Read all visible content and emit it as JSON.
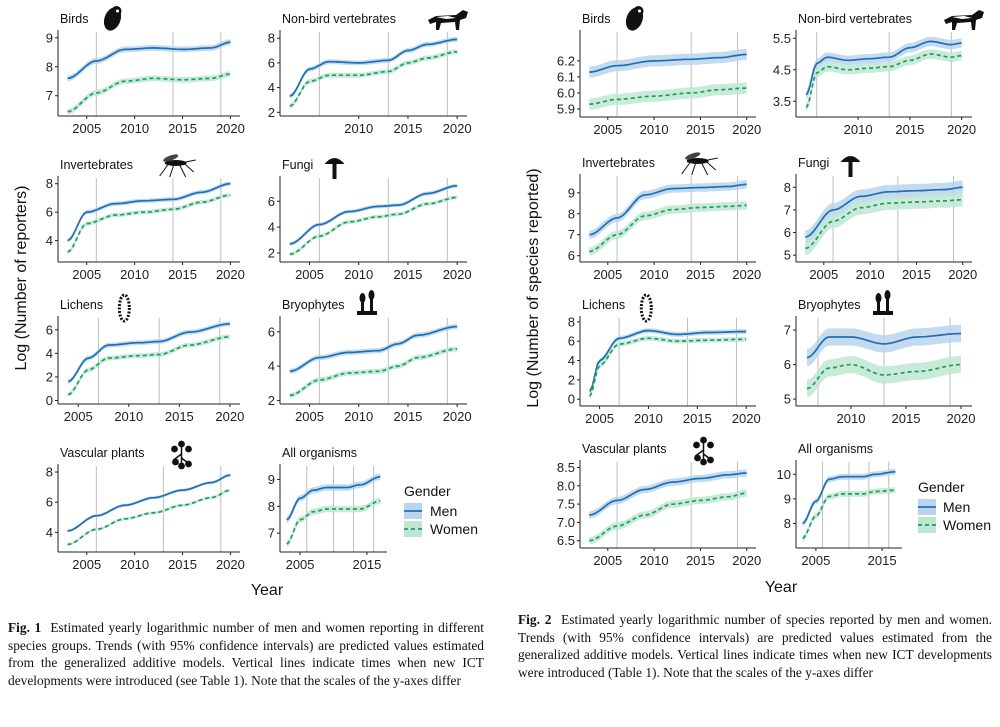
{
  "figure1": {
    "ylabel": "Log (Number of reporters)",
    "xlabel": "Year",
    "legend": {
      "title": "Gender",
      "men": "Men",
      "women": "Women"
    },
    "caption": {
      "label": "Fig. 1",
      "text": "Estimated yearly logarithmic number of men and women reporting in different species groups. Trends (with 95% confidence intervals) are predicted values estimated from the generalized additive models. Vertical lines indicate times when new ICT developments were introduced (see Table 1). Note that the scales of the y-axes differ"
    }
  },
  "figure2": {
    "ylabel": "Log (Number of species reported)",
    "xlabel": "Year",
    "legend": {
      "title": "Gender",
      "men": "Men",
      "women": "Women"
    },
    "caption": {
      "label": "Fig. 2",
      "text": "Estimated yearly logarithmic number of species reported by men and women. Trends (with 95% confidence intervals) are predicted values estimated from the generalized additive models. Vertical lines indicate times when new ICT developments were introduced (Table 1). Note that the scales of the y-axes differ"
    }
  },
  "colors": {
    "men": "#1f6fb5",
    "men_band": "#b9d4ec",
    "women": "#1a9e63",
    "women_band": "#bfe6d1",
    "vline": "#bdbdbd",
    "axis": "#222222"
  },
  "chart_data": [
    {
      "id": "f1-birds",
      "type": "line",
      "title": "Birds",
      "icon": "owl-icon",
      "x": [
        2003,
        2006,
        2009,
        2012,
        2015,
        2018,
        2020
      ],
      "xlim": [
        2002,
        2021
      ],
      "xticks": [
        2005,
        2010,
        2015,
        2020
      ],
      "ylim": [
        6.3,
        9.2
      ],
      "yticks": [
        7,
        8,
        9
      ],
      "vlines": [
        2006,
        2014,
        2019
      ],
      "band": 0.1,
      "series": [
        {
          "name": "Men",
          "values": [
            7.6,
            8.2,
            8.6,
            8.65,
            8.6,
            8.65,
            8.85
          ]
        },
        {
          "name": "Women",
          "values": [
            6.45,
            7.1,
            7.5,
            7.6,
            7.55,
            7.6,
            7.75
          ]
        }
      ]
    },
    {
      "id": "f1-nonbird",
      "type": "line",
      "title": "Non-bird vertebrates",
      "icon": "wolf-icon",
      "x": [
        2003,
        2005,
        2007,
        2010,
        2013,
        2015,
        2017,
        2020
      ],
      "xlim": [
        2002,
        2021
      ],
      "xticks": [
        2010,
        2015,
        2020
      ],
      "ylim": [
        1.7,
        8.5
      ],
      "yticks": [
        2,
        4,
        6,
        8
      ],
      "vlines": [
        2006,
        2013,
        2019
      ],
      "band": 0.2,
      "series": [
        {
          "name": "Men",
          "values": [
            3.3,
            5.5,
            6.1,
            6.0,
            6.2,
            7.0,
            7.5,
            7.9
          ]
        },
        {
          "name": "Women",
          "values": [
            2.5,
            4.5,
            5.0,
            5.0,
            5.3,
            6.0,
            6.4,
            6.9
          ]
        }
      ]
    },
    {
      "id": "f1-invert",
      "type": "line",
      "title": "Invertebrates",
      "icon": "mosquito-icon",
      "x": [
        2003,
        2005,
        2008,
        2011,
        2014,
        2017,
        2020
      ],
      "xlim": [
        2002,
        2021
      ],
      "xticks": [
        2005,
        2010,
        2015,
        2020
      ],
      "ylim": [
        2.5,
        8.4
      ],
      "yticks": [
        4,
        6,
        8
      ],
      "vlines": [
        2006,
        2014,
        2019
      ],
      "band": 0.15,
      "series": [
        {
          "name": "Men",
          "values": [
            4.0,
            6.0,
            6.6,
            6.8,
            6.9,
            7.4,
            8.0
          ]
        },
        {
          "name": "Women",
          "values": [
            3.2,
            5.2,
            5.8,
            6.0,
            6.2,
            6.7,
            7.2
          ]
        }
      ]
    },
    {
      "id": "f1-fungi",
      "type": "line",
      "title": "Fungi",
      "icon": "mushroom-icon",
      "x": [
        2003,
        2006,
        2009,
        2012,
        2014,
        2017,
        2020
      ],
      "xlim": [
        2002,
        2021
      ],
      "xticks": [
        2005,
        2010,
        2015,
        2020
      ],
      "ylim": [
        1.3,
        7.8
      ],
      "yticks": [
        2,
        4,
        6
      ],
      "vlines": [
        2006,
        2013,
        2019
      ],
      "band": 0.15,
      "series": [
        {
          "name": "Men",
          "values": [
            2.7,
            4.2,
            5.2,
            5.6,
            5.7,
            6.6,
            7.2
          ]
        },
        {
          "name": "Women",
          "values": [
            1.9,
            3.3,
            4.4,
            4.8,
            5.0,
            5.8,
            6.3
          ]
        }
      ]
    },
    {
      "id": "f1-lichens",
      "type": "line",
      "title": "Lichens",
      "icon": "lichen-icon",
      "x": [
        2004,
        2006,
        2008,
        2011,
        2013,
        2016,
        2020
      ],
      "xlim": [
        2003,
        2021
      ],
      "xticks": [
        2005,
        2010,
        2015,
        2020
      ],
      "ylim": [
        -0.3,
        7.0
      ],
      "yticks": [
        0,
        2,
        4,
        6
      ],
      "vlines": [
        2007,
        2013,
        2019
      ],
      "band": 0.2,
      "series": [
        {
          "name": "Men",
          "values": [
            1.6,
            3.6,
            4.7,
            4.9,
            5.0,
            5.8,
            6.5
          ]
        },
        {
          "name": "Women",
          "values": [
            0.5,
            2.6,
            3.6,
            3.8,
            3.9,
            4.7,
            5.4
          ]
        }
      ]
    },
    {
      "id": "f1-bryo",
      "type": "line",
      "title": "Bryophytes",
      "icon": "moss-icon",
      "x": [
        2003,
        2006,
        2009,
        2012,
        2014,
        2016,
        2020
      ],
      "xlim": [
        2002,
        2021
      ],
      "xticks": [
        2005,
        2010,
        2015,
        2020
      ],
      "ylim": [
        1.8,
        6.8
      ],
      "yticks": [
        2,
        4,
        6
      ],
      "vlines": [
        2006,
        2013,
        2019
      ],
      "band": 0.15,
      "series": [
        {
          "name": "Men",
          "values": [
            3.7,
            4.5,
            4.8,
            4.9,
            5.3,
            5.8,
            6.3
          ]
        },
        {
          "name": "Women",
          "values": [
            2.3,
            3.2,
            3.6,
            3.7,
            4.0,
            4.5,
            5.0
          ]
        }
      ]
    },
    {
      "id": "f1-vasc",
      "type": "line",
      "title": "Vascular plants",
      "icon": "flower-icon",
      "x": [
        2003,
        2006,
        2009,
        2012,
        2015,
        2018,
        2020
      ],
      "xlim": [
        2002,
        2021
      ],
      "xticks": [
        2005,
        2010,
        2015,
        2020
      ],
      "ylim": [
        2.7,
        8.4
      ],
      "yticks": [
        4,
        6,
        8
      ],
      "vlines": [
        2006,
        2013,
        2019
      ],
      "band": 0.1,
      "series": [
        {
          "name": "Men",
          "values": [
            4.1,
            5.1,
            5.8,
            6.3,
            6.8,
            7.3,
            7.8
          ]
        },
        {
          "name": "Women",
          "values": [
            3.2,
            4.2,
            4.9,
            5.3,
            5.8,
            6.3,
            6.8
          ]
        }
      ]
    },
    {
      "id": "f1-all",
      "type": "line",
      "title": "All organisms",
      "icon": "",
      "x": [
        2003,
        2005,
        2007,
        2009,
        2012,
        2014,
        2017
      ],
      "xlim": [
        2002,
        2018
      ],
      "xticks": [
        2005,
        2015
      ],
      "ylim": [
        6.3,
        9.5
      ],
      "yticks": [
        7,
        8,
        9
      ],
      "vlines": [
        2006,
        2010,
        2013,
        2016
      ],
      "band": 0.12,
      "series": [
        {
          "name": "Men",
          "values": [
            7.5,
            8.3,
            8.6,
            8.7,
            8.7,
            8.8,
            9.1
          ]
        },
        {
          "name": "Women",
          "values": [
            6.6,
            7.5,
            7.8,
            7.9,
            7.9,
            7.9,
            8.2
          ]
        }
      ]
    },
    {
      "id": "f2-birds",
      "type": "line",
      "title": "Birds",
      "icon": "owl-icon",
      "x": [
        2003,
        2006,
        2010,
        2014,
        2017,
        2020
      ],
      "xlim": [
        2002,
        2021
      ],
      "xticks": [
        2005,
        2010,
        2015,
        2020
      ],
      "ylim": [
        5.85,
        6.38
      ],
      "yticks": [
        5.9,
        6.0,
        6.1,
        6.2
      ],
      "vlines": [
        2006,
        2014,
        2019
      ],
      "band": 0.035,
      "series": [
        {
          "name": "Men",
          "values": [
            6.13,
            6.17,
            6.2,
            6.21,
            6.22,
            6.24
          ]
        },
        {
          "name": "Women",
          "values": [
            5.93,
            5.96,
            5.98,
            6.0,
            6.02,
            6.03
          ]
        }
      ]
    },
    {
      "id": "f2-nonbird",
      "type": "line",
      "title": "Non-bird vertebrates",
      "icon": "wolf-icon",
      "x": [
        2005,
        2006,
        2007,
        2009,
        2011,
        2013,
        2015,
        2017,
        2019,
        2020
      ],
      "xlim": [
        2004,
        2021
      ],
      "xticks": [
        2010,
        2015,
        2020
      ],
      "ylim": [
        3.0,
        5.7
      ],
      "yticks": [
        3.5,
        4.5,
        5.5
      ],
      "vlines": [
        2006,
        2013,
        2019
      ],
      "band": 0.15,
      "series": [
        {
          "name": "Men",
          "values": [
            3.7,
            4.7,
            4.9,
            4.8,
            4.85,
            4.9,
            5.2,
            5.4,
            5.3,
            5.35
          ]
        },
        {
          "name": "Women",
          "values": [
            3.3,
            4.4,
            4.6,
            4.5,
            4.55,
            4.6,
            4.8,
            5.0,
            4.9,
            4.95
          ]
        }
      ]
    },
    {
      "id": "f2-invert",
      "type": "line",
      "title": "Invertebrates",
      "icon": "mosquito-icon",
      "x": [
        2003,
        2006,
        2009,
        2012,
        2015,
        2018,
        2020
      ],
      "xlim": [
        2002,
        2021
      ],
      "xticks": [
        2005,
        2010,
        2015,
        2020
      ],
      "ylim": [
        5.7,
        9.8
      ],
      "yticks": [
        6.0,
        7.0,
        8.0,
        9.0
      ],
      "vlines": [
        2006,
        2014,
        2019
      ],
      "band": 0.2,
      "series": [
        {
          "name": "Men",
          "values": [
            7.0,
            7.8,
            8.9,
            9.2,
            9.25,
            9.3,
            9.4
          ]
        },
        {
          "name": "Women",
          "values": [
            6.2,
            7.0,
            7.9,
            8.2,
            8.3,
            8.35,
            8.4
          ]
        }
      ]
    },
    {
      "id": "f2-fungi",
      "type": "line",
      "title": "Fungi",
      "icon": "mushroom-icon",
      "x": [
        2003,
        2006,
        2009,
        2012,
        2015,
        2018,
        2020
      ],
      "xlim": [
        2002,
        2021
      ],
      "xticks": [
        2005,
        2010,
        2015,
        2020
      ],
      "ylim": [
        4.7,
        8.5
      ],
      "yticks": [
        5.0,
        6.0,
        7.0,
        8.0
      ],
      "vlines": [
        2006,
        2013,
        2019
      ],
      "band": 0.3,
      "series": [
        {
          "name": "Men",
          "values": [
            5.8,
            7.0,
            7.6,
            7.8,
            7.85,
            7.9,
            8.0
          ]
        },
        {
          "name": "Women",
          "values": [
            5.3,
            6.5,
            7.1,
            7.3,
            7.35,
            7.4,
            7.45
          ]
        }
      ]
    },
    {
      "id": "f2-lichens",
      "type": "line",
      "title": "Lichens",
      "icon": "lichen-icon",
      "x": [
        2004,
        2005,
        2007,
        2010,
        2013,
        2016,
        2020
      ],
      "xlim": [
        2003,
        2021
      ],
      "xticks": [
        2005,
        2010,
        2015,
        2020
      ],
      "ylim": [
        -0.7,
        8.4
      ],
      "yticks": [
        0.0,
        2.0,
        4.0,
        6.0,
        8.0
      ],
      "vlines": [
        2007,
        2014,
        2019
      ],
      "band": 0.25,
      "series": [
        {
          "name": "Men",
          "values": [
            0.8,
            4.0,
            6.3,
            7.1,
            6.7,
            6.9,
            7.0
          ]
        },
        {
          "name": "Women",
          "values": [
            0.3,
            3.5,
            5.7,
            6.3,
            6.0,
            6.1,
            6.2
          ]
        }
      ]
    },
    {
      "id": "f2-bryo",
      "type": "line",
      "title": "Bryophytes",
      "icon": "moss-icon",
      "x": [
        2006,
        2008,
        2010,
        2013,
        2016,
        2020
      ],
      "xlim": [
        2005,
        2021
      ],
      "xticks": [
        2010,
        2015,
        2020
      ],
      "ylim": [
        4.8,
        7.35
      ],
      "yticks": [
        5.0,
        6.0,
        7.0
      ],
      "vlines": [
        2007,
        2013,
        2019
      ],
      "band": 0.25,
      "series": [
        {
          "name": "Men",
          "values": [
            6.2,
            6.8,
            6.8,
            6.6,
            6.8,
            6.9
          ]
        },
        {
          "name": "Women",
          "values": [
            5.3,
            5.9,
            6.0,
            5.7,
            5.8,
            6.0
          ]
        }
      ]
    },
    {
      "id": "f2-vasc",
      "type": "line",
      "title": "Vascular plants",
      "icon": "flower-icon",
      "x": [
        2003,
        2006,
        2009,
        2012,
        2015,
        2018,
        2020
      ],
      "xlim": [
        2002,
        2021
      ],
      "xticks": [
        2005,
        2010,
        2015,
        2020
      ],
      "ylim": [
        6.3,
        8.65
      ],
      "yticks": [
        6.5,
        7.0,
        7.5,
        8.0,
        8.5
      ],
      "vlines": [
        2006,
        2014,
        2019
      ],
      "band": 0.1,
      "series": [
        {
          "name": "Men",
          "values": [
            7.2,
            7.6,
            7.9,
            8.1,
            8.2,
            8.3,
            8.35
          ]
        },
        {
          "name": "Women",
          "values": [
            6.5,
            6.9,
            7.2,
            7.5,
            7.6,
            7.7,
            7.8
          ]
        }
      ]
    },
    {
      "id": "f2-all",
      "type": "line",
      "title": "All organisms",
      "icon": "",
      "x": [
        2003,
        2005,
        2007,
        2009,
        2012,
        2014,
        2017
      ],
      "xlim": [
        2002,
        2018
      ],
      "xticks": [
        2005,
        2015
      ],
      "ylim": [
        7.0,
        10.5
      ],
      "yticks": [
        8.0,
        9.0,
        10.0
      ],
      "vlines": [
        2006,
        2010,
        2013,
        2016
      ],
      "band": 0.12,
      "series": [
        {
          "name": "Men",
          "values": [
            8.0,
            8.9,
            9.8,
            9.9,
            9.9,
            10.0,
            10.1
          ]
        },
        {
          "name": "Women",
          "values": [
            7.4,
            8.3,
            9.1,
            9.2,
            9.2,
            9.3,
            9.35
          ]
        }
      ]
    }
  ]
}
